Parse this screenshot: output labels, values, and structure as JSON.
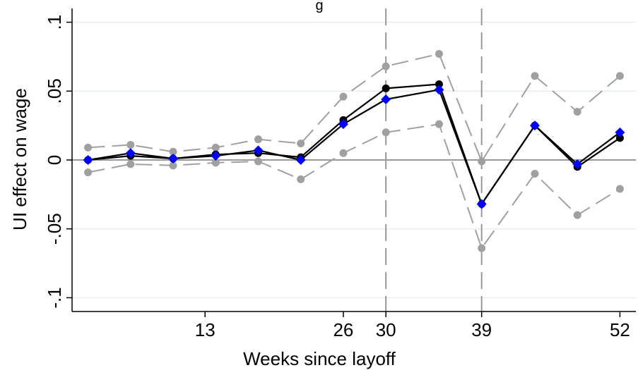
{
  "chart_data": {
    "type": "line",
    "title": "g",
    "xlabel": "Weeks since layoff",
    "ylabel": "UI effect on wage",
    "xlim": [
      0.5,
      53.5
    ],
    "ylim": [
      -0.11,
      0.11
    ],
    "x_ticks": [
      13,
      26,
      30,
      39,
      52
    ],
    "x_tick_labels": [
      "13",
      "26",
      "30",
      "39",
      "52"
    ],
    "y_ticks": [
      -0.1,
      -0.05,
      0,
      0.05,
      0.1
    ],
    "y_tick_labels": [
      "-.1",
      "-.05",
      "0",
      ".05",
      ".1"
    ],
    "vertical_reference_lines": [
      30,
      39
    ],
    "horizontal_reference_line": 0,
    "grid": true,
    "colors": {
      "estimate": "#000000",
      "alternative": "#0000ff",
      "ci": "#a0a0a0",
      "reference": "#999999",
      "grid": "#e6eef0"
    },
    "x": [
      2,
      6,
      10,
      14,
      18,
      22,
      26,
      30,
      35,
      39,
      44,
      48,
      52
    ],
    "series": [
      {
        "style": "black-circle",
        "values": [
          0.0,
          0.003,
          0.001,
          0.004,
          0.005,
          0.002,
          0.029,
          0.052,
          0.055,
          -0.032,
          0.025,
          -0.005,
          0.016
        ]
      },
      {
        "style": "blue-diamond",
        "values": [
          0.0,
          0.005,
          0.001,
          0.003,
          0.007,
          0.0,
          0.026,
          0.044,
          0.051,
          -0.032,
          0.025,
          -0.003,
          0.02
        ]
      },
      {
        "style": "ci-upper",
        "values": [
          0.009,
          0.011,
          0.006,
          0.009,
          0.015,
          0.012,
          0.046,
          0.068,
          0.077,
          -0.001,
          0.061,
          0.035,
          0.061
        ]
      },
      {
        "style": "ci-lower",
        "values": [
          -0.009,
          -0.003,
          -0.004,
          -0.002,
          -0.001,
          -0.014,
          0.005,
          0.02,
          0.026,
          -0.064,
          -0.01,
          -0.04,
          -0.021
        ]
      }
    ]
  }
}
